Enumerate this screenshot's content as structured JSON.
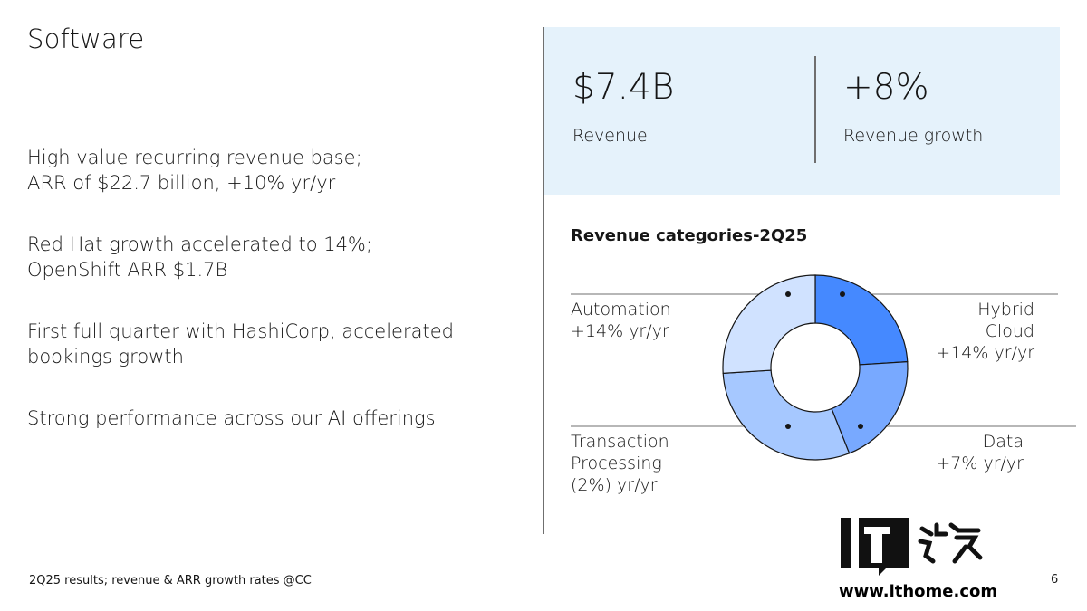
{
  "slide": {
    "title": "Software",
    "bullets": [
      {
        "lines": [
          "High value recurring revenue base;",
          "ARR of $22.7 billion, +10% yr/yr"
        ]
      },
      {
        "lines": [
          "Red Hat growth accelerated to 14%;",
          "OpenShift ARR $1.7B"
        ]
      },
      {
        "lines": [
          "First full quarter with HashiCorp, accelerated",
          "bookings growth"
        ]
      },
      {
        "lines": [
          "Strong performance across our AI offerings"
        ]
      }
    ],
    "footnote": "2Q25 results; revenue & ARR growth rates @CC",
    "page_number": "6"
  },
  "kpis": [
    {
      "value": "$7.4B",
      "label": "Revenue"
    },
    {
      "value": "+8%",
      "label": "Revenue growth"
    }
  ],
  "chart_data": {
    "type": "pie",
    "title": "Revenue categories-2Q25",
    "categories": [
      {
        "name": "Hybrid Cloud",
        "growth": "+14% yr/yr",
        "color": "#4589ff"
      },
      {
        "name": "Data",
        "growth": "+7% yr/yr",
        "color": "#78a9ff"
      },
      {
        "name": "Transaction Processing",
        "growth": "(2%) yr/yr",
        "color": "#a6c8ff"
      },
      {
        "name": "Automation",
        "growth": "+14% yr/yr",
        "color": "#d0e2ff"
      }
    ],
    "values": [
      0.24,
      0.2,
      0.3,
      0.26
    ]
  },
  "labels": {
    "automation": {
      "line1": "Automation",
      "line2": "+14% yr/yr"
    },
    "hybrid_cloud": {
      "line1": "Hybrid Cloud",
      "line2": "+14% yr/yr"
    },
    "transaction": {
      "line1": "Transaction",
      "line2": "Processing",
      "line3": "(2%) yr/yr"
    },
    "data": {
      "line1": "Data",
      "line2": "+7% yr/yr"
    }
  },
  "watermark": {
    "logo_text": "IT之家",
    "url": "www.ithome.com"
  }
}
